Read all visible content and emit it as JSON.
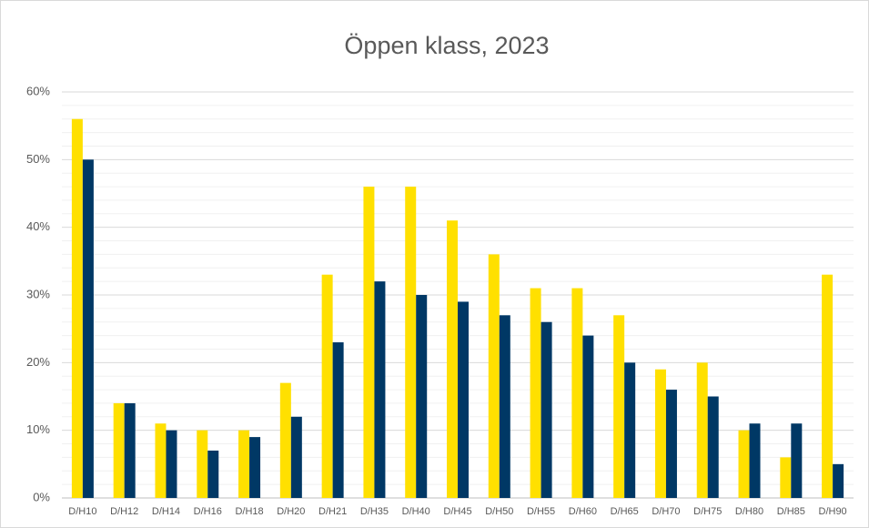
{
  "chart_data": {
    "type": "bar",
    "title": "Öppen klass, 2023",
    "categories": [
      "D/H10",
      "D/H12",
      "D/H14",
      "D/H16",
      "D/H18",
      "D/H20",
      "D/H21",
      "D/H35",
      "D/H40",
      "D/H45",
      "D/H50",
      "D/H55",
      "D/H60",
      "D/H65",
      "D/H70",
      "D/H75",
      "D/H80",
      "D/H85",
      "D/H90"
    ],
    "series": [
      {
        "color": "#ffe000",
        "values": [
          56,
          14,
          11,
          10,
          10,
          17,
          33,
          46,
          46,
          41,
          36,
          31,
          31,
          27,
          19,
          20,
          10,
          6,
          33
        ]
      },
      {
        "color": "#003865",
        "values": [
          50,
          14,
          10,
          7,
          9,
          12,
          23,
          32,
          30,
          29,
          27,
          26,
          24,
          20,
          16,
          15,
          11,
          11,
          5
        ]
      }
    ],
    "ylim": [
      0,
      60
    ],
    "yticks": [
      {
        "value": 0,
        "label": "0%"
      },
      {
        "value": 10,
        "label": "10%"
      },
      {
        "value": 20,
        "label": "20%"
      },
      {
        "value": 30,
        "label": "30%"
      },
      {
        "value": 40,
        "label": "40%"
      },
      {
        "value": 50,
        "label": "50%"
      },
      {
        "value": 60,
        "label": "60%"
      }
    ],
    "minor_yticks": [
      2,
      4,
      6,
      8,
      12,
      14,
      16,
      18,
      22,
      24,
      26,
      28,
      32,
      34,
      36,
      38,
      42,
      44,
      46,
      48,
      52,
      54,
      56,
      58
    ],
    "grid": true
  }
}
